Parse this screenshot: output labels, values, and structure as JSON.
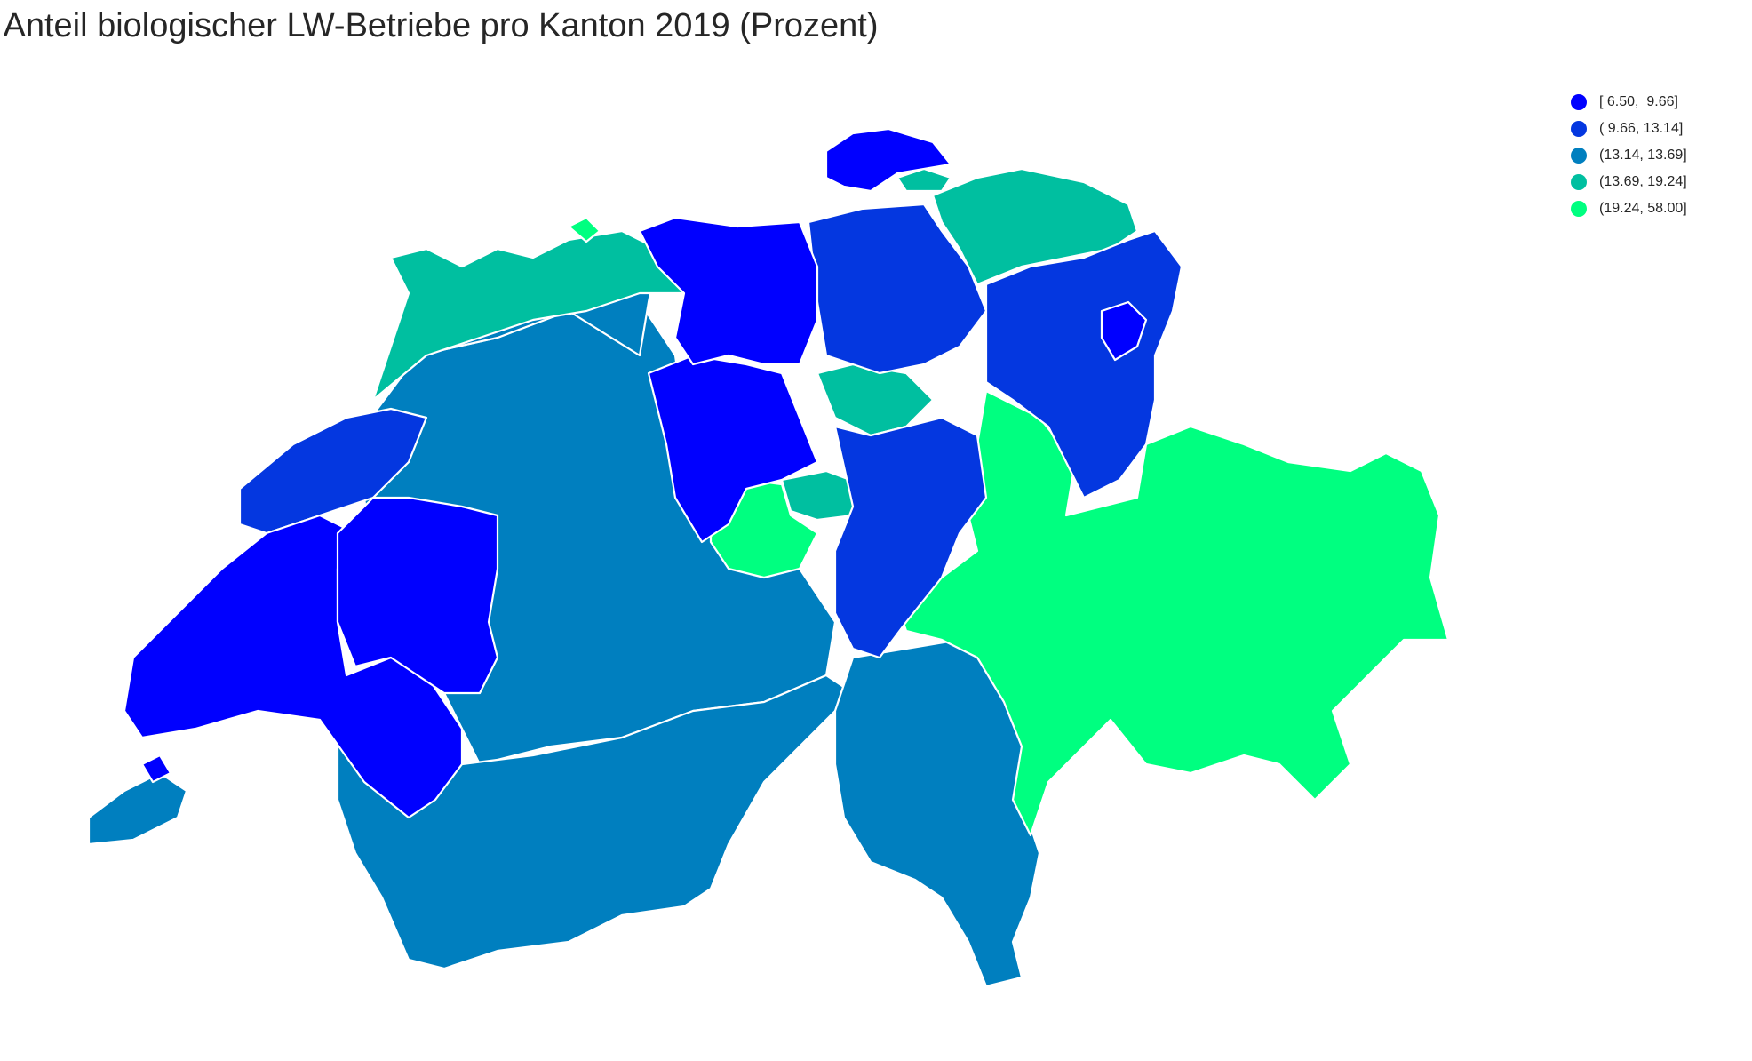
{
  "title": "Anteil biologischer LW-Betriebe pro Kanton 2019 (Prozent)",
  "legend": [
    {
      "label": "[ 6.50,  9.66]",
      "color": "#0000ff"
    },
    {
      "label": "( 9.66, 13.14]",
      "color": "#0437e0"
    },
    {
      "label": "(13.14, 13.69]",
      "color": "#007fbf"
    },
    {
      "label": "(13.69, 19.24]",
      "color": "#00bfa0"
    },
    {
      "label": "(19.24, 58.00]",
      "color": "#00ff80"
    }
  ],
  "map": {
    "subject": "Switzerland cantons",
    "classes": [
      "[ 6.50,  9.66]",
      "( 9.66, 13.14]",
      "(13.14, 13.69]",
      "(13.69, 19.24]",
      "(19.24, 58.00]"
    ]
  }
}
